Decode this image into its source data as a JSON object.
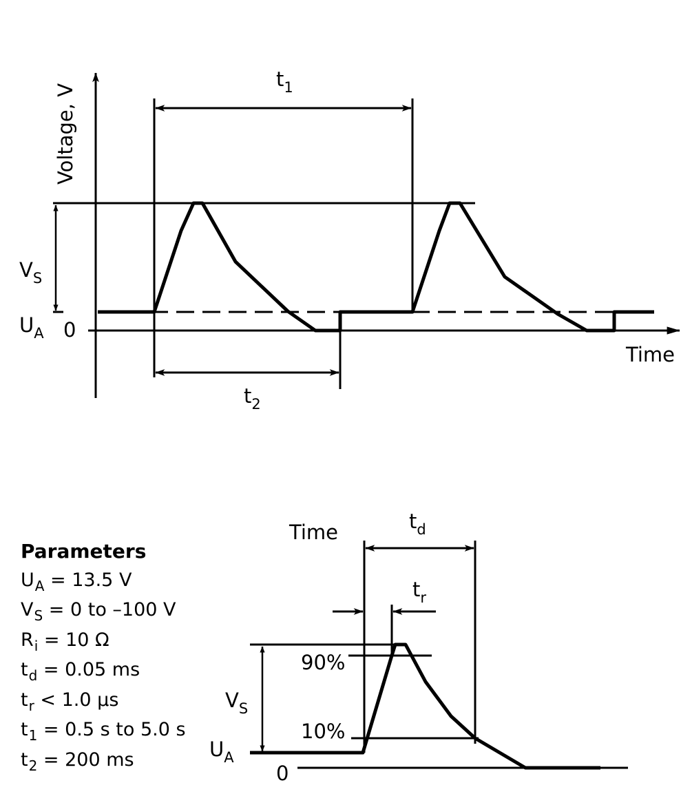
{
  "top_diagram": {
    "y_axis_label": "Voltage, V",
    "x_axis_label": "Time",
    "t1_label": {
      "base": "t",
      "sub": "1"
    },
    "t2_label": {
      "base": "t",
      "sub": "2"
    },
    "vs_label": {
      "base": "V",
      "sub": "S"
    },
    "ua_label": {
      "base": "U",
      "sub": "A"
    },
    "zero_label": "0"
  },
  "bottom_diagram": {
    "time_label": "Time",
    "td_label": {
      "base": "t",
      "sub": "d"
    },
    "tr_label": {
      "base": "t",
      "sub": "r"
    },
    "p90_label": "90%",
    "p10_label": "10%",
    "vs_label": {
      "base": "V",
      "sub": "S"
    },
    "ua_label": {
      "base": "U",
      "sub": "A"
    },
    "zero_label": "0"
  },
  "parameters": {
    "title": "Parameters",
    "rows": [
      {
        "base": "U",
        "sub": "A",
        "value": " = 13.5 V"
      },
      {
        "base": "V",
        "sub": "S",
        "value": " = 0 to –100 V"
      },
      {
        "base": "R",
        "sub": "i",
        "value": " = 10 Ω"
      },
      {
        "base": "t",
        "sub": "d",
        "value": " = 0.05 ms"
      },
      {
        "base": "t",
        "sub": "r",
        "value": " < 1.0 μs"
      },
      {
        "base": "t",
        "sub": "1",
        "value": " = 0.5 s to 5.0 s"
      },
      {
        "base": "t",
        "sub": "2",
        "value": " = 200 ms"
      }
    ]
  }
}
